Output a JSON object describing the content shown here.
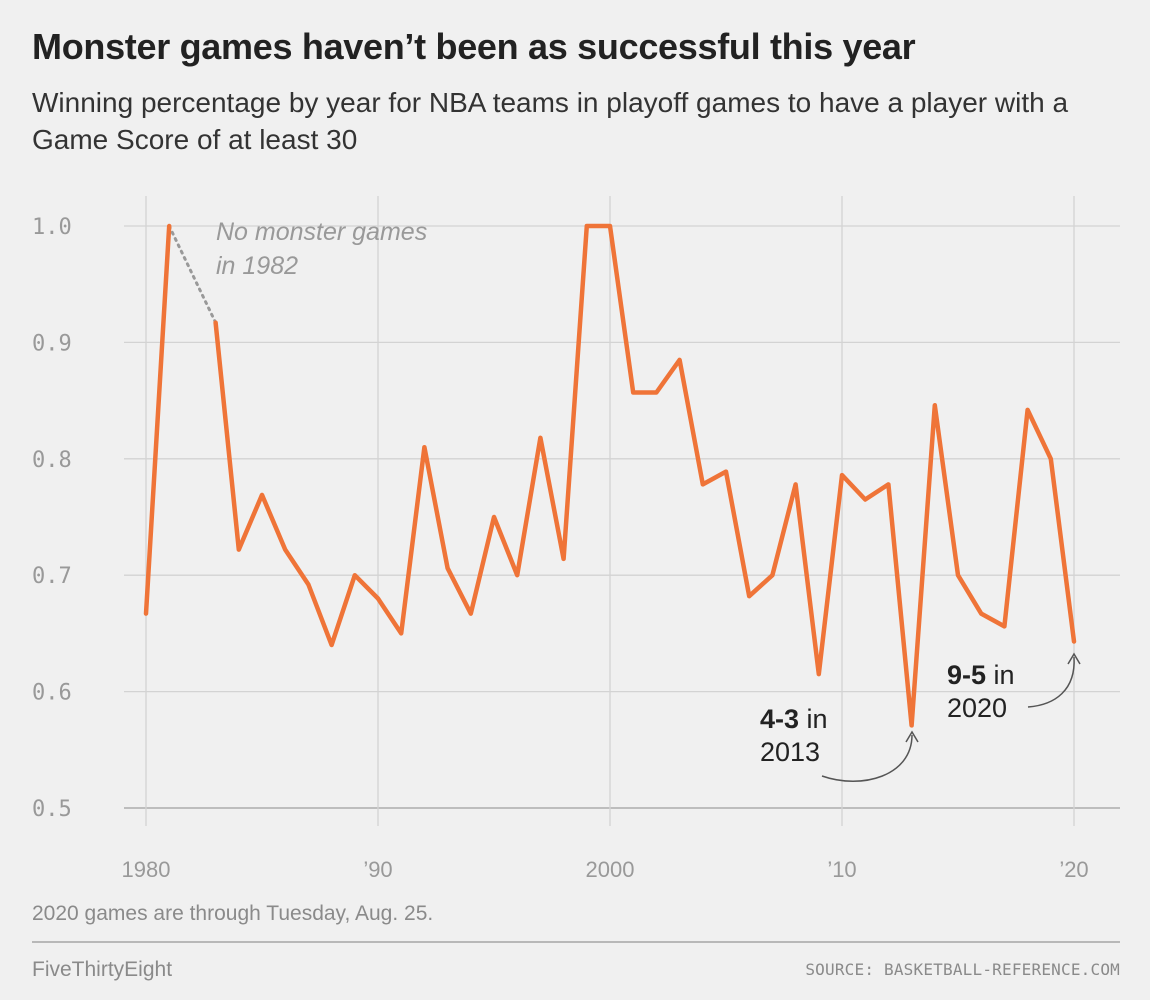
{
  "header": {
    "title": "Monster games haven’t been as successful this year",
    "subtitle": "Winning percentage by year for NBA teams in playoff games to have a player with a Game Score of at least 30"
  },
  "chart_data": {
    "type": "line",
    "x": [
      1980,
      1981,
      1982,
      1983,
      1984,
      1985,
      1986,
      1987,
      1988,
      1989,
      1990,
      1991,
      1992,
      1993,
      1994,
      1995,
      1996,
      1997,
      1998,
      1999,
      2000,
      2001,
      2002,
      2003,
      2004,
      2005,
      2006,
      2007,
      2008,
      2009,
      2010,
      2011,
      2012,
      2013,
      2014,
      2015,
      2016,
      2017,
      2018,
      2019,
      2020
    ],
    "series": [
      {
        "values": [
          0.667,
          1.0,
          null,
          0.917,
          0.722,
          0.769,
          0.722,
          0.692,
          0.64,
          0.7,
          0.68,
          0.65,
          0.81,
          0.706,
          0.667,
          0.75,
          0.7,
          0.818,
          0.714,
          1.0,
          1.0,
          0.857,
          0.857,
          0.885,
          0.778,
          0.789,
          0.682,
          0.7,
          0.778,
          0.615,
          0.786,
          0.765,
          0.778,
          0.571,
          0.846,
          0.7,
          0.667,
          0.656,
          0.842,
          0.8,
          0.643
        ]
      }
    ],
    "xlim": [
      1980,
      2020
    ],
    "ylim": [
      0.5,
      1.0
    ],
    "x_ticks": [
      {
        "value": 1980,
        "label": "1980"
      },
      {
        "value": 1990,
        "label": "’90"
      },
      {
        "value": 2000,
        "label": "2000"
      },
      {
        "value": 2010,
        "label": "’10"
      },
      {
        "value": 2020,
        "label": "’20"
      }
    ],
    "y_ticks": [
      {
        "value": 1.0,
        "label": "1.0"
      },
      {
        "value": 0.9,
        "label": "0.9"
      },
      {
        "value": 0.8,
        "label": "0.8"
      },
      {
        "value": 0.7,
        "label": "0.7"
      },
      {
        "value": 0.6,
        "label": "0.6"
      },
      {
        "value": 0.5,
        "label": "0.5"
      }
    ],
    "grid": true,
    "colors": {
      "line": "#ef7438",
      "grid": "#d3d3d3",
      "axis": "#bdbdbd",
      "gap": "#999999",
      "arrow": "#555555"
    },
    "annotations": {
      "gap": {
        "line1": "No monster games",
        "line2": "in 1982"
      },
      "low_2013": {
        "record": "4-3",
        "in": " in",
        "year": "2013"
      },
      "last_2020": {
        "record": "9-5",
        "in": " in",
        "year": "2020"
      }
    }
  },
  "footer": {
    "note": "2020 games are through Tuesday, Aug. 25.",
    "brand": "FiveThirtyEight",
    "source": "SOURCE: BASKETBALL-REFERENCE.COM"
  }
}
